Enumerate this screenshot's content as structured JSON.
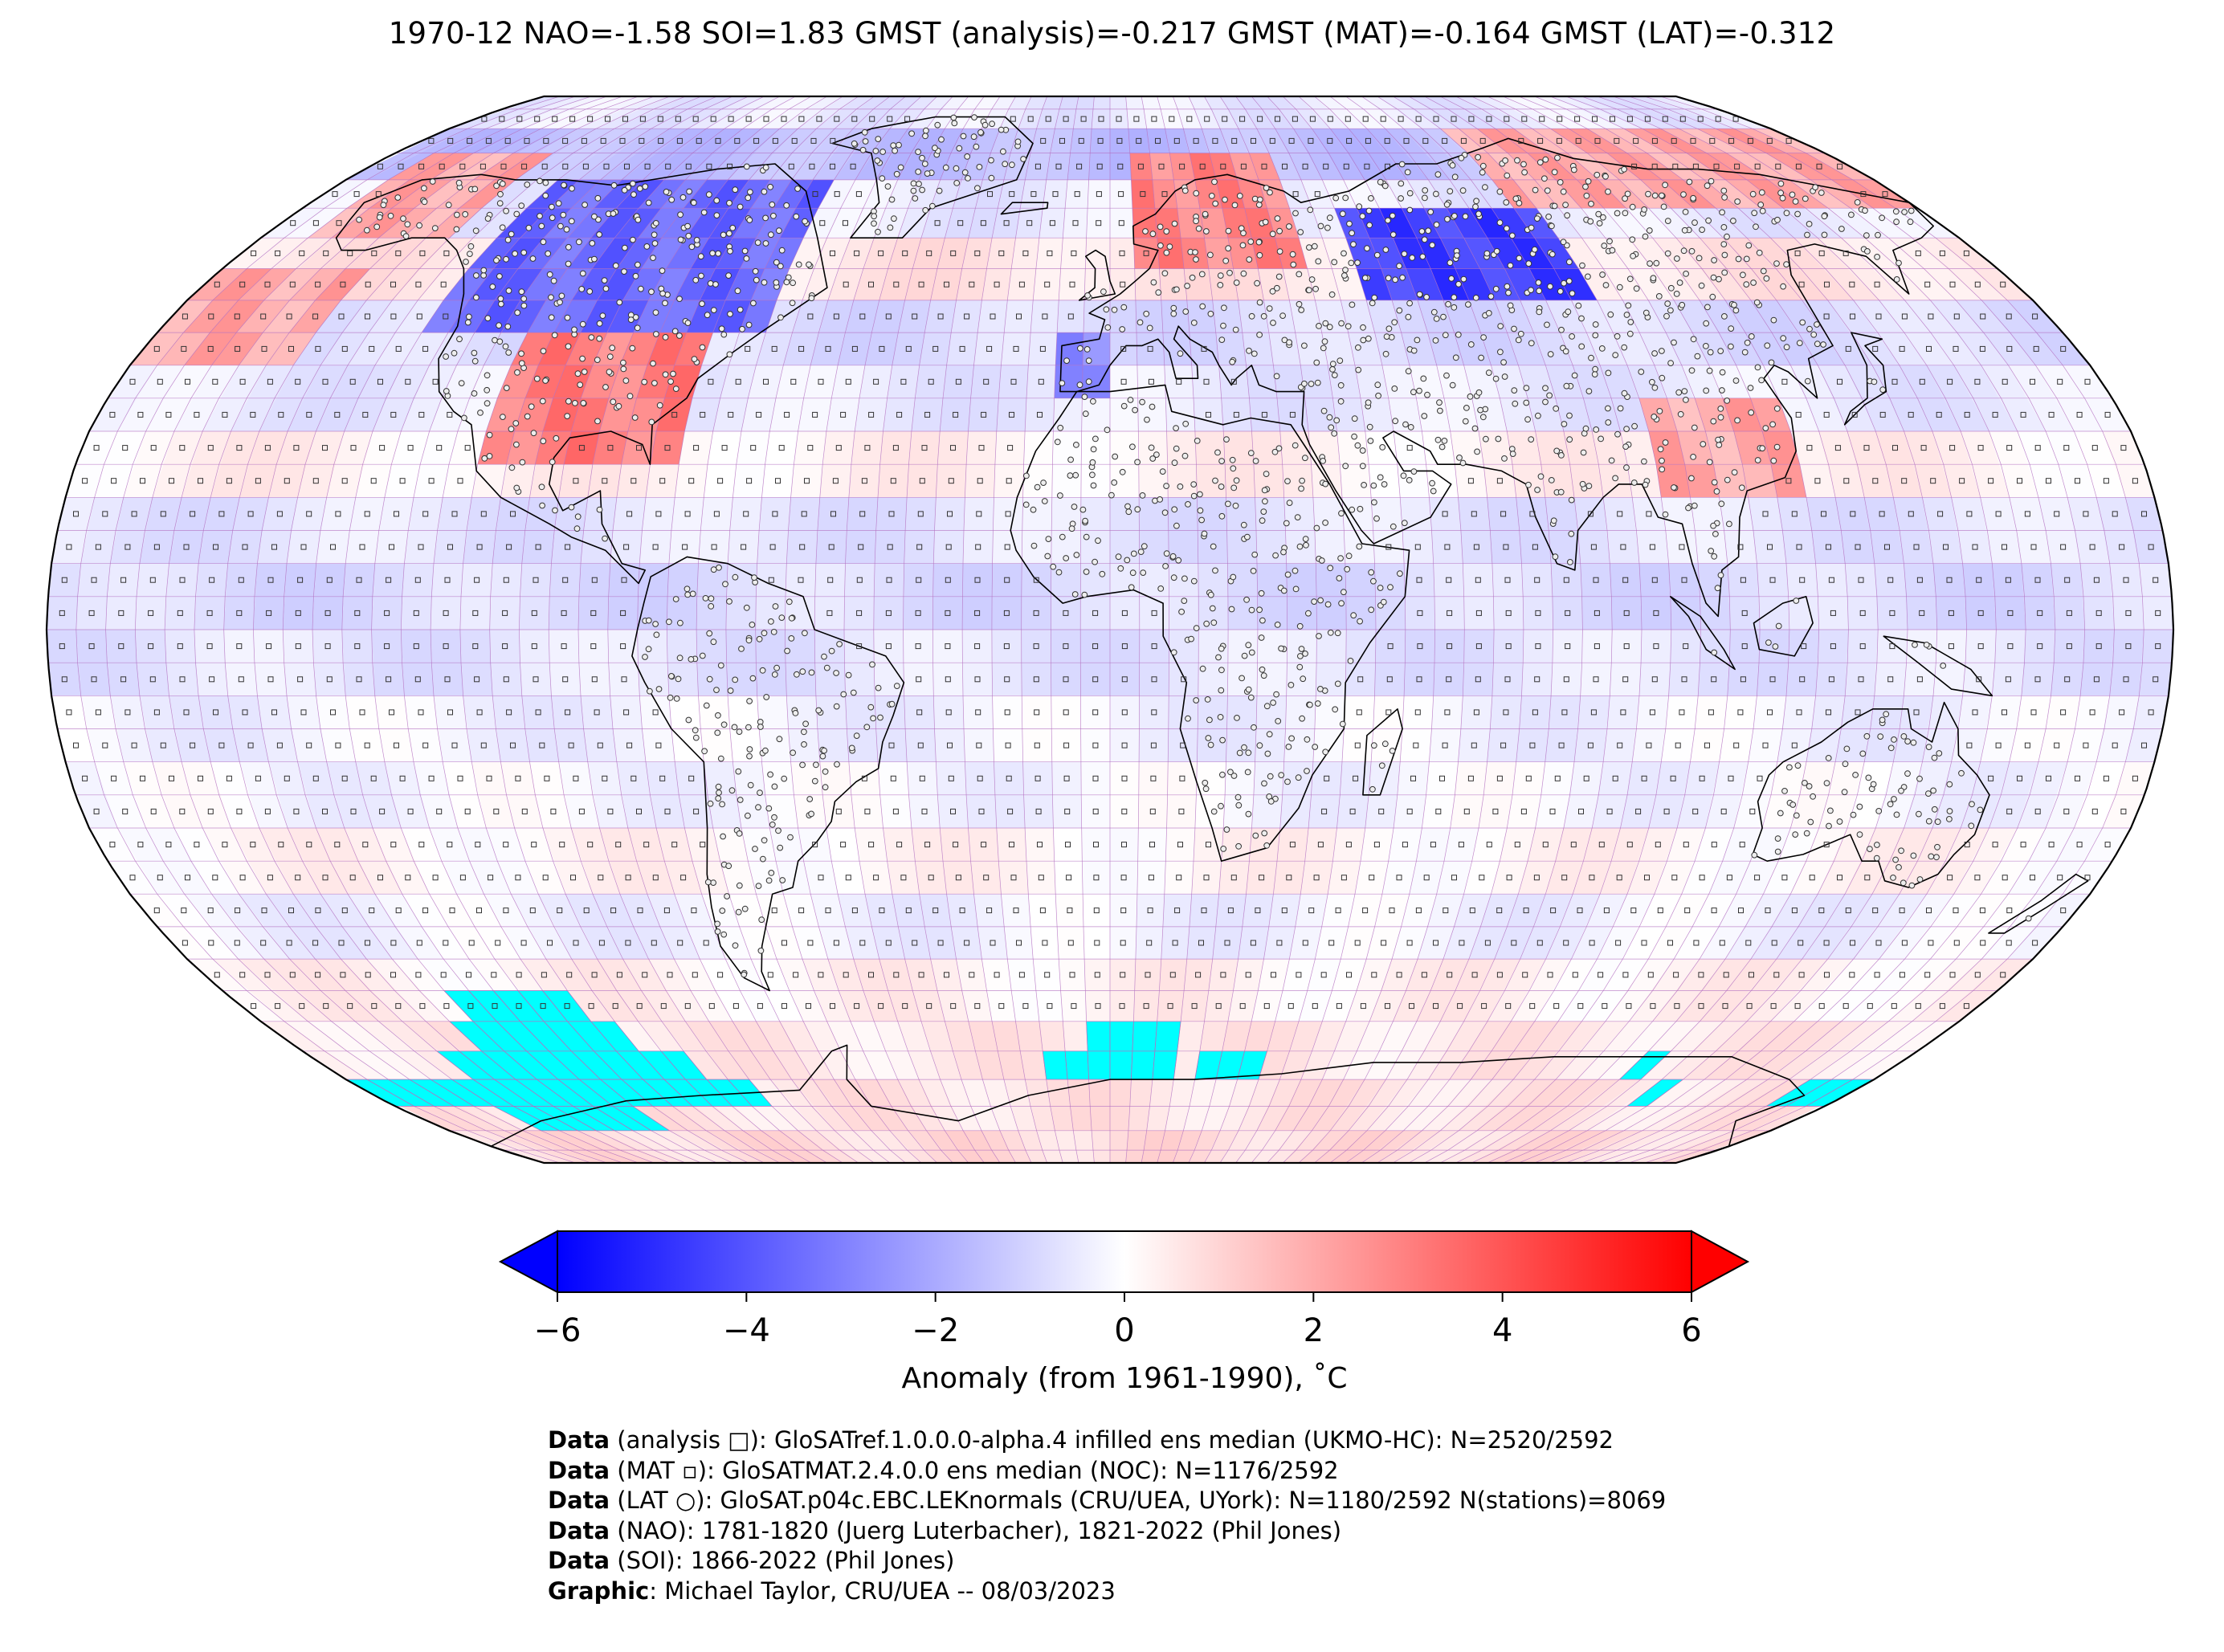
{
  "title": "1970-12 NAO=-1.58 SOI=1.83 GMST (analysis)=-0.217 GMST (MAT)=-0.164 GMST (LAT)=-0.312",
  "map": {
    "projection": "Robinson",
    "colors": {
      "missing": "#00ffff",
      "gridline": "#b36fc0",
      "coastline": "#000000",
      "cold": "#0000ff",
      "neutral": "#ffffff",
      "warm": "#ff0000"
    },
    "markers": {
      "analysis": "square",
      "mat": "small-square",
      "lat": "circle"
    },
    "anomaly_bands_by_latitude": [
      {
        "lat": 85,
        "anomaly": -0.5
      },
      {
        "lat": 75,
        "anomaly": -1.5
      },
      {
        "lat": 65,
        "anomaly": -0.5
      },
      {
        "lat": 55,
        "anomaly": 0.6
      },
      {
        "lat": 45,
        "anomaly": -0.8
      },
      {
        "lat": 35,
        "anomaly": -0.5
      },
      {
        "lat": 25,
        "anomaly": 0.3
      },
      {
        "lat": 15,
        "anomaly": -0.6
      },
      {
        "lat": 5,
        "anomaly": -0.8
      },
      {
        "lat": -5,
        "anomaly": -0.6
      },
      {
        "lat": -15,
        "anomaly": -0.3
      },
      {
        "lat": -25,
        "anomaly": -0.2
      },
      {
        "lat": -35,
        "anomaly": 0.2
      },
      {
        "lat": -45,
        "anomaly": -0.3
      },
      {
        "lat": -55,
        "anomaly": 0.3
      },
      {
        "lat": -65,
        "anomaly": 0.5
      },
      {
        "lat": -75,
        "anomaly": 0.6
      },
      {
        "lat": -85,
        "anomaly": 0.8
      }
    ],
    "regional_anomalies": [
      {
        "region": "Canada / northern USA",
        "anomaly": -3.5
      },
      {
        "region": "southern USA",
        "anomaly": 3.0
      },
      {
        "region": "Scandinavia",
        "anomaly": 2.8
      },
      {
        "region": "western Siberia",
        "anomaly": -4.5
      },
      {
        "region": "Alaska",
        "anomaly": 2.0
      },
      {
        "region": "Iberia",
        "anomaly": -2.5
      },
      {
        "region": "southern China",
        "anomaly": 2.0
      },
      {
        "region": "North Pacific",
        "anomaly": 2.0
      },
      {
        "region": "Arctic Russia",
        "anomaly": 2.0
      }
    ]
  },
  "colorbar": {
    "min": -6,
    "max": 6,
    "extend": "both",
    "ticks": [
      "−6",
      "−4",
      "−2",
      "0",
      "2",
      "4",
      "6"
    ],
    "tick_values": [
      -6,
      -4,
      -2,
      0,
      2,
      4,
      6
    ],
    "label": "Anomaly (from 1961-1990), ˚C"
  },
  "credits": [
    {
      "bold": "Data",
      "text": " (analysis □): GloSATref.1.0.0.0-alpha.4 infilled ens median (UKMO-HC): N=2520/2592"
    },
    {
      "bold": "Data",
      "text": " (MAT ▫): GloSATMAT.2.4.0.0 ens median (NOC): N=1176/2592"
    },
    {
      "bold": "Data",
      "text": " (LAT ○): GloSAT.p04c.EBC.LEKnormals (CRU/UEA, UYork): N=1180/2592 N(stations)=8069"
    },
    {
      "bold": "Data",
      "text": " (NAO): 1781-1820 (Juerg Luterbacher), 1821-2022 (Phil Jones)"
    },
    {
      "bold": "Data",
      "text": " (SOI): 1866-2022 (Phil Jones)"
    },
    {
      "bold": "Graphic",
      "text": ": Michael Taylor, CRU/UEA -- 08/03/2023"
    }
  ]
}
